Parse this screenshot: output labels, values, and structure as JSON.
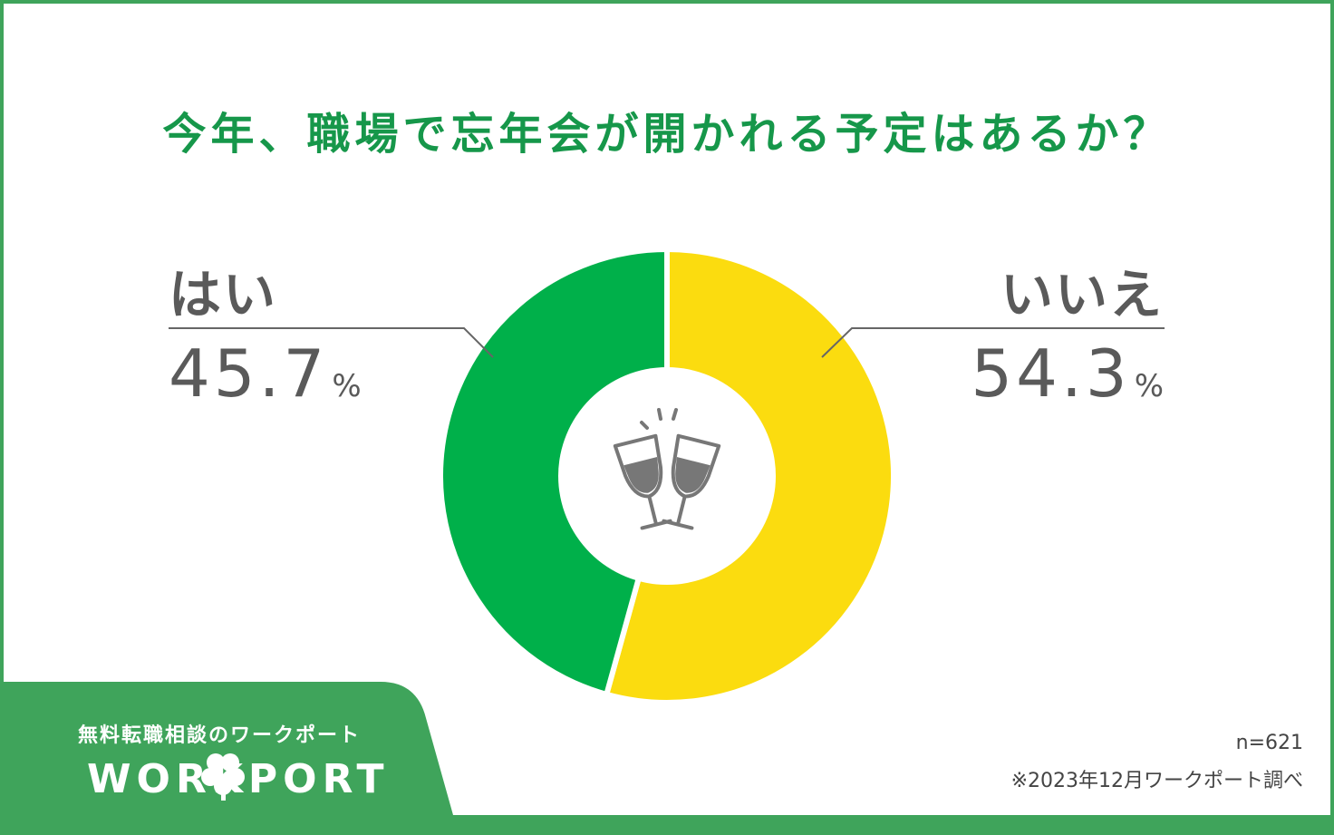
{
  "colors": {
    "brand_green": "#3fa45b",
    "title_green": "#16974a",
    "yes_green": "#00b04a",
    "no_yellow": "#fbdc0f",
    "text_gray": "#5a5a5a"
  },
  "chart_data": {
    "type": "pie",
    "title": "今年、職場で忘年会が開かれる予定はあるか？",
    "categories": [
      "はい",
      "いいえ"
    ],
    "values": [
      45.7,
      54.3
    ],
    "value_labels": [
      "45.7",
      "54.3"
    ],
    "unit": "%",
    "colors": [
      "#00b04a",
      "#fbdc0f"
    ],
    "style": "donut",
    "center_icon": "wine-glasses-toast-icon"
  },
  "branding": {
    "tagline": "無料転職相談のワークポート",
    "logo_text": "WORKPORT",
    "logo_icon": "clover-icon"
  },
  "footer": {
    "sample_size": "n=621",
    "source": "※2023年12月ワークポート調べ"
  }
}
